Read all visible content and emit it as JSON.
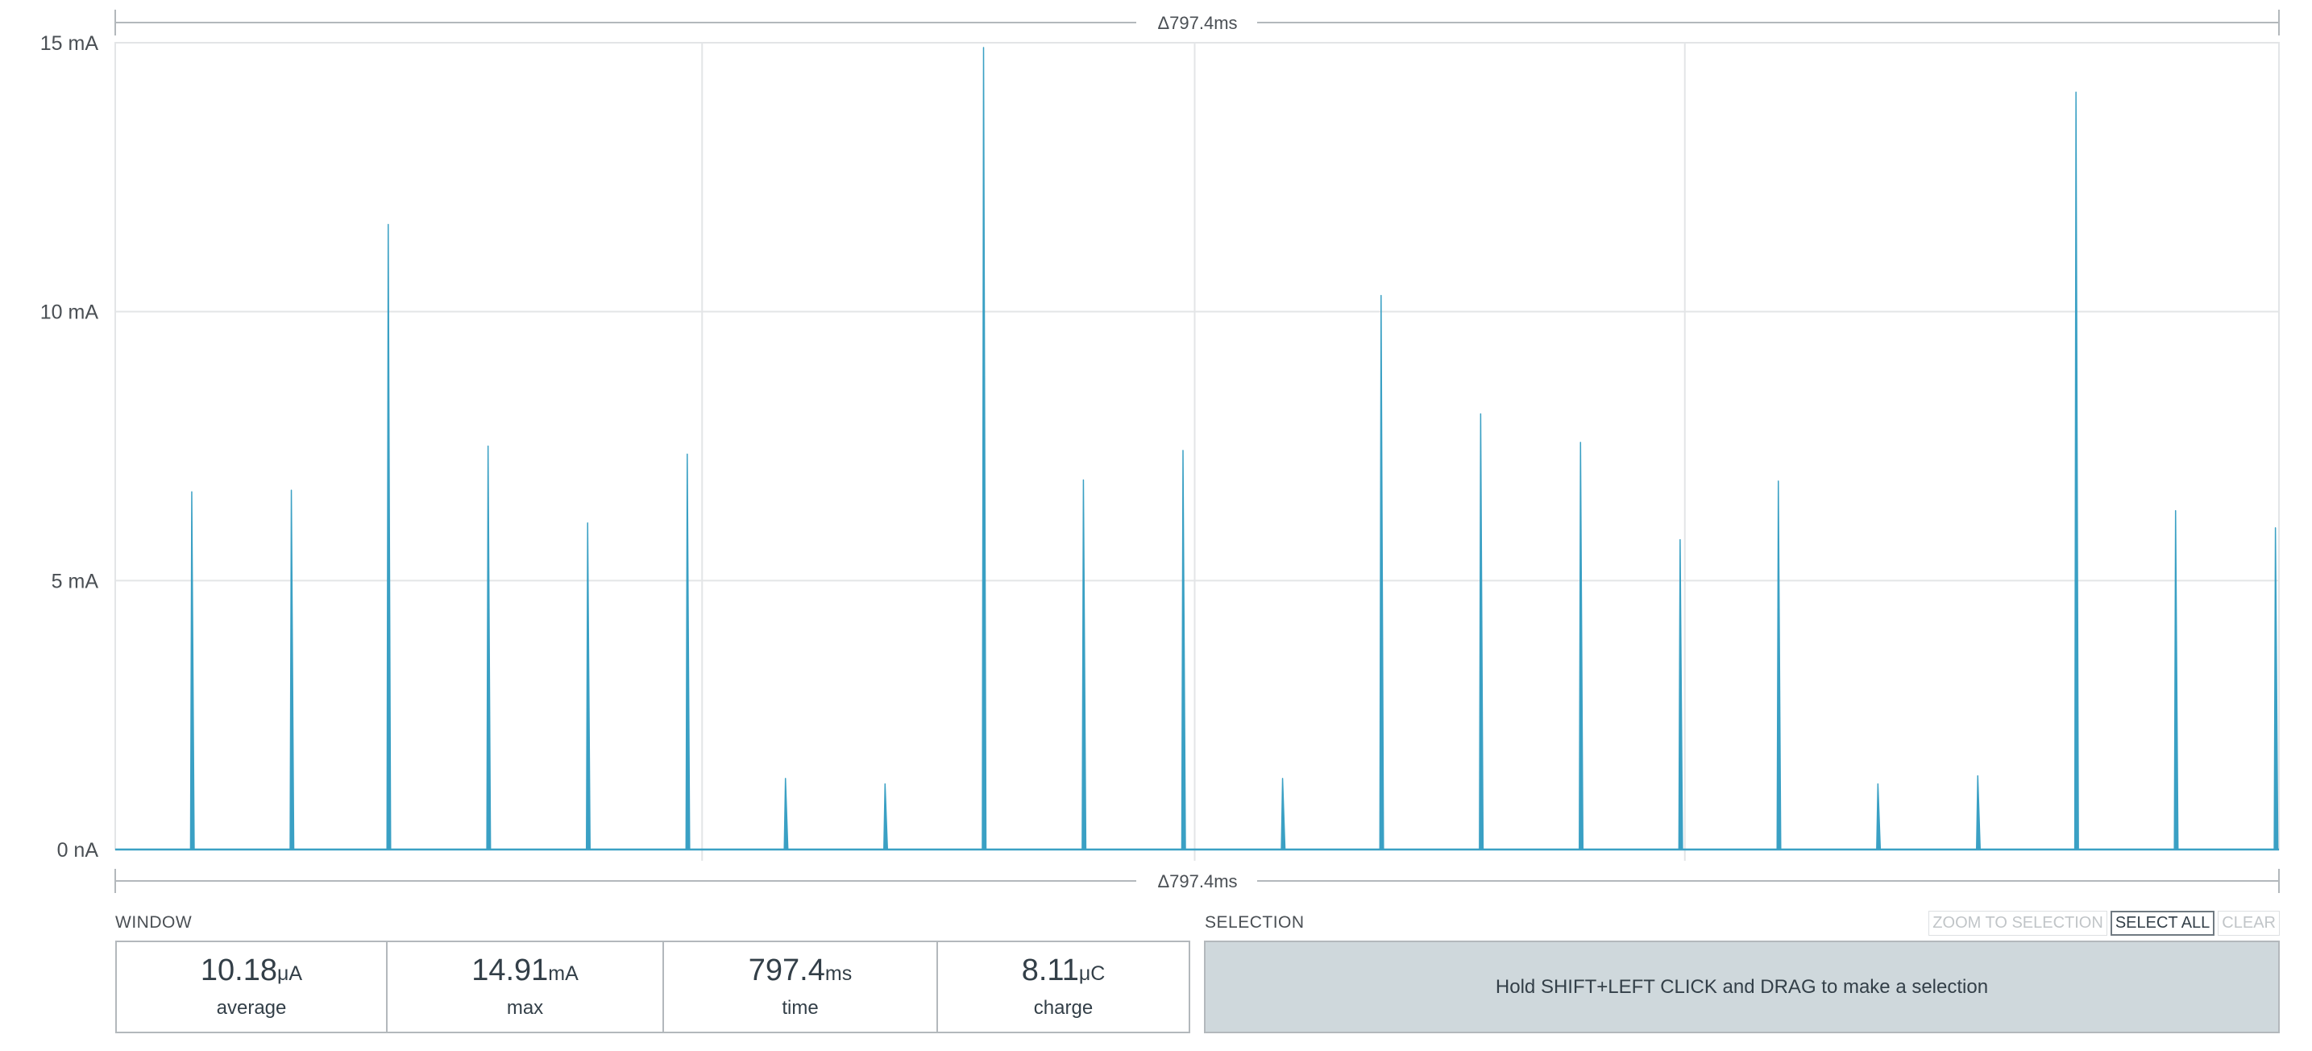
{
  "chart_data": {
    "type": "line",
    "ylim": [
      0,
      15
    ],
    "y_ticks": [
      {
        "value": 0,
        "label": "0 nA"
      },
      {
        "value": 5,
        "label": "5 mA"
      },
      {
        "value": 10,
        "label": "10 mA"
      },
      {
        "value": 15,
        "label": "15 mA"
      }
    ],
    "grid": true,
    "window_ms": 797.4,
    "line_color": "#3aa0c4",
    "spikes_ms": [
      {
        "t": 28.2,
        "peak": 6.65
      },
      {
        "t": 64.9,
        "peak": 6.68
      },
      {
        "t": 100.6,
        "peak": 11.62
      },
      {
        "t": 137.4,
        "peak": 7.5
      },
      {
        "t": 174.1,
        "peak": 6.07
      },
      {
        "t": 210.8,
        "peak": 7.35
      },
      {
        "t": 247.0,
        "peak": 1.32
      },
      {
        "t": 283.7,
        "peak": 1.22
      },
      {
        "t": 320.0,
        "peak": 14.91
      },
      {
        "t": 356.8,
        "peak": 6.87
      },
      {
        "t": 393.5,
        "peak": 7.42
      },
      {
        "t": 430.2,
        "peak": 1.32
      },
      {
        "t": 466.5,
        "peak": 10.3
      },
      {
        "t": 503.2,
        "peak": 8.1
      },
      {
        "t": 540.0,
        "peak": 7.57
      },
      {
        "t": 576.7,
        "peak": 5.76
      },
      {
        "t": 612.9,
        "peak": 6.85
      },
      {
        "t": 649.6,
        "peak": 1.22
      },
      {
        "t": 686.4,
        "peak": 1.37
      },
      {
        "t": 722.6,
        "peak": 14.08
      },
      {
        "t": 759.3,
        "peak": 6.3
      },
      {
        "t": 796.1,
        "peak": 5.98
      }
    ]
  },
  "delta_top": "Δ797.4ms",
  "delta_bottom": "Δ797.4ms",
  "window": {
    "label": "WINDOW",
    "stats": [
      {
        "value": "10.18",
        "unit": "μA",
        "label": "average"
      },
      {
        "value": "14.91",
        "unit": "mA",
        "label": "max"
      },
      {
        "value": "797.4",
        "unit": "ms",
        "label": "time"
      },
      {
        "value": "8.11",
        "unit": "μC",
        "label": "charge"
      }
    ]
  },
  "selection": {
    "label": "SELECTION",
    "zoom_button": "ZOOM TO SELECTION",
    "select_all_button": "SELECT ALL",
    "clear_button": "CLEAR",
    "hint": "Hold SHIFT+LEFT CLICK and DRAG to make a selection"
  }
}
